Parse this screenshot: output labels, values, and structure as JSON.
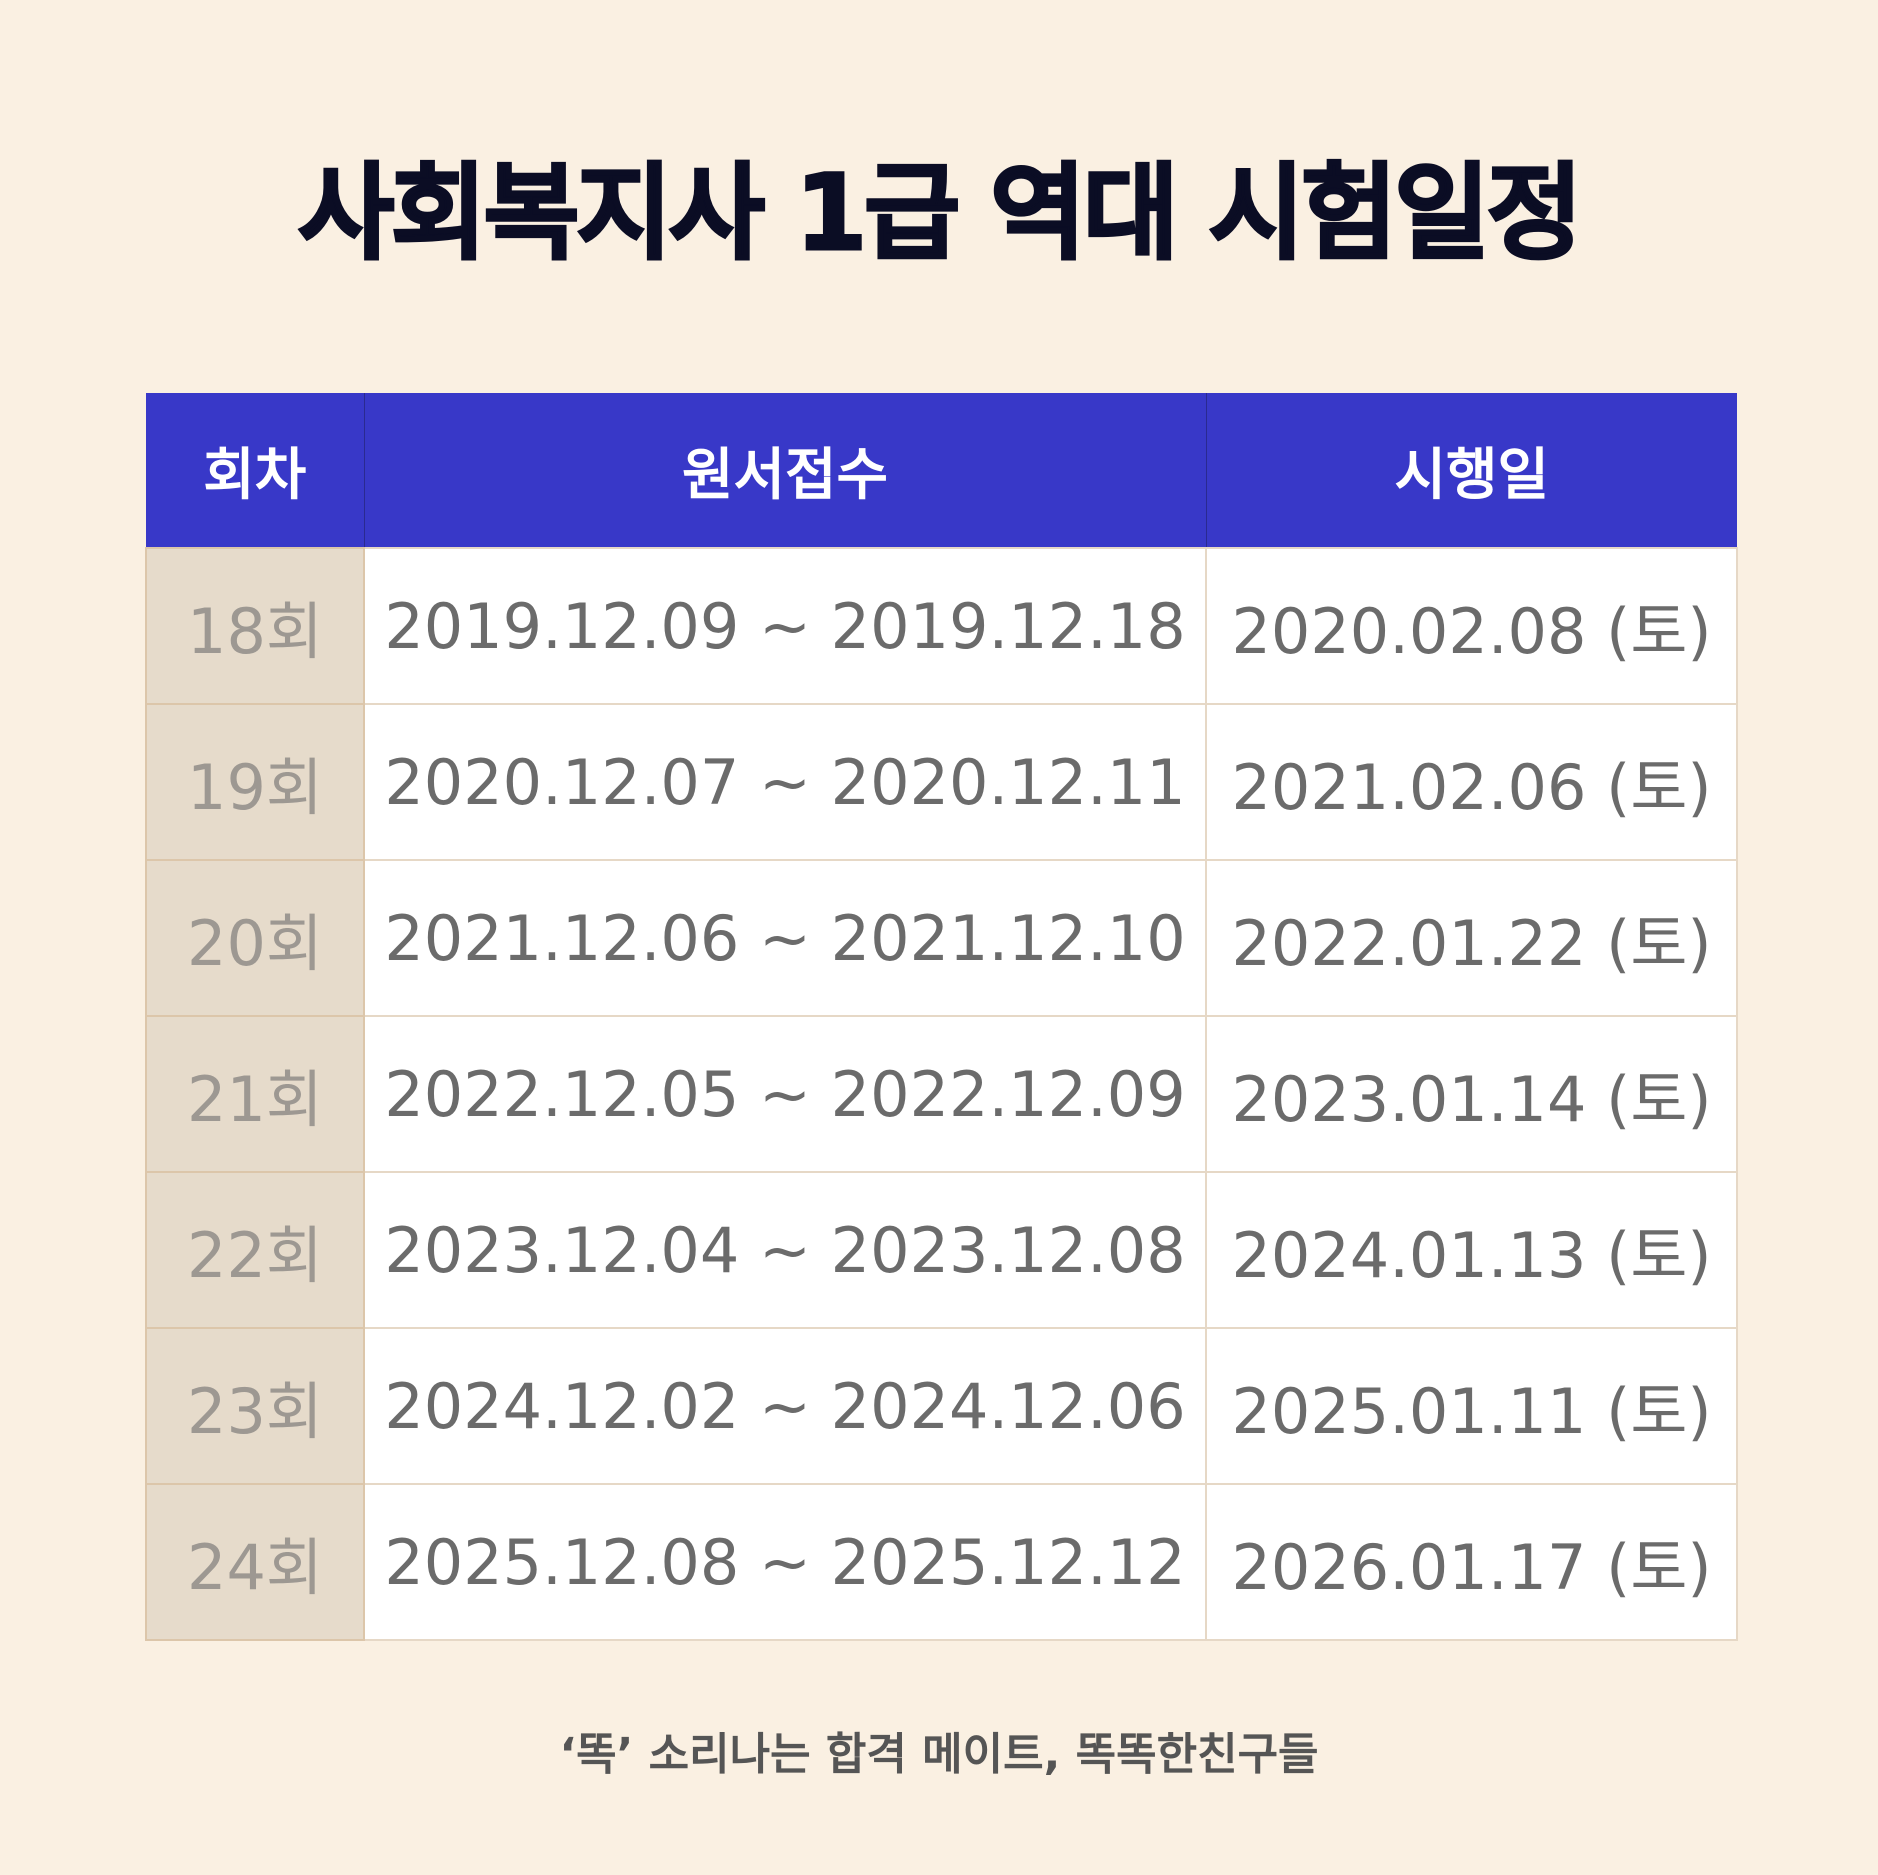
{
  "title": "사회복지사 1급 역대 시험일정",
  "table": {
    "headers": [
      "회차",
      "원서접수",
      "시행일"
    ],
    "rows": [
      {
        "round": "18회",
        "application": "2019.12.09 ~ 2019.12.18",
        "exam": "2020.02.08 (토)"
      },
      {
        "round": "19회",
        "application": "2020.12.07 ~ 2020.12.11",
        "exam": "2021.02.06 (토)"
      },
      {
        "round": "20회",
        "application": "2021.12.06 ~ 2021.12.10",
        "exam": "2022.01.22 (토)"
      },
      {
        "round": "21회",
        "application": "2022.12.05 ~ 2022.12.09",
        "exam": "2023.01.14 (토)"
      },
      {
        "round": "22회",
        "application": "2023.12.04 ~ 2023.12.08",
        "exam": "2024.01.13 (토)"
      },
      {
        "round": "23회",
        "application": "2024.12.02 ~ 2024.12.06",
        "exam": "2025.01.11 (토)"
      },
      {
        "round": "24회",
        "application": "2025.12.08 ~ 2025.12.12",
        "exam": "2026.01.17 (토)"
      }
    ]
  },
  "footer": "‘똑’ 소리나는 합격 메이트, 똑똑한친구들",
  "colors": {
    "background": "#faf0e2",
    "header": "#3838c8",
    "round_cell": "#e6dbcb",
    "title": "#0b0d24"
  }
}
